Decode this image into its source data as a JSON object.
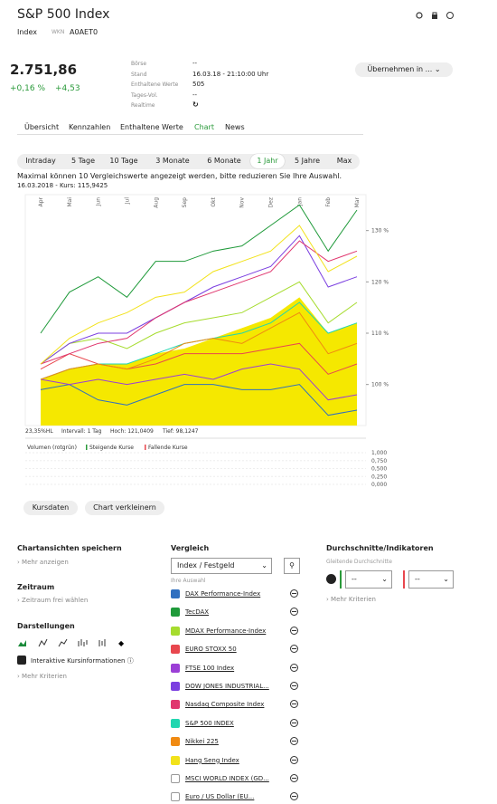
{
  "header": {
    "title": "S&P 500 Index",
    "type": "Index",
    "wkn_label": "WKN",
    "wkn": "A0AET0"
  },
  "quote": {
    "price": "2.751,86",
    "change_pct": "+0,16 %",
    "change_abs": "+4,53"
  },
  "details": [
    [
      "Börse",
      "--"
    ],
    [
      "Stand",
      "16.03.18 - 21:10:00 Uhr"
    ],
    [
      "Enthaltene Werte",
      "505"
    ],
    [
      "Tages-Vol.",
      "--"
    ],
    [
      "Realtime",
      null
    ]
  ],
  "adopt_button": "Übernehmen in ...",
  "tabs": {
    "items": [
      "Übersicht",
      "Kennzahlen",
      "Enthaltene Werte",
      "Chart",
      "News"
    ],
    "active": 3
  },
  "ranges": {
    "items": [
      "Intraday",
      "5 Tage",
      "10 Tage",
      "3 Monate",
      "6 Monate",
      "1 Jahr",
      "5 Jahre",
      "Max"
    ],
    "active": 5
  },
  "notice": "Maximal können 10 Vergleichswerte angezeigt werden, bitte reduzieren Sie Ihre Auswahl.",
  "chart_data": {
    "type": "line",
    "subtitle": "16.03.2018  -  Kurs: 115,9425",
    "categories": [
      "Apr",
      "Mai",
      "Jun",
      "Jul",
      "Aug",
      "Sep",
      "Okt",
      "Nov",
      "Dez",
      "Jan",
      "Feb",
      "Mar"
    ],
    "values": [
      101,
      103,
      104,
      104,
      106,
      107,
      109,
      111,
      113,
      117,
      110,
      112
    ],
    "color": "#f5e800",
    "ylim": [
      92,
      137
    ],
    "yticks": [
      {
        "value": 100,
        "label": "100 %"
      },
      {
        "value": 110,
        "label": "110 %"
      },
      {
        "value": 120,
        "label": "120 %"
      },
      {
        "value": 130,
        "label": "130 %"
      }
    ],
    "stats": [
      "23,35%HL",
      "Intervall: 1 Tag",
      "Hoch: 121,0409",
      "Tief: 98,1247"
    ],
    "volume": {
      "legend": [
        "Volumen (rotgrün)",
        "Steigende Kurse",
        "Fallende Kurse"
      ],
      "ylim": [
        0,
        1
      ],
      "yticks": [
        {
          "value": 1,
          "label": "1,000"
        },
        {
          "value": 0.75,
          "label": "0,750"
        },
        {
          "value": 0.5,
          "label": "0,500"
        },
        {
          "value": 0.25,
          "label": "0,250"
        },
        {
          "value": 0,
          "label": "0,000"
        }
      ]
    }
  },
  "chart_buttons": [
    "Kursdaten",
    "Chart verkleinern"
  ],
  "left": {
    "save_title": "Chartansichten speichern",
    "save_more": "Mehr anzeigen",
    "range_title": "Zeitraum",
    "range_free": "Zeitraum frei wählen",
    "display_title": "Darstellungen",
    "interactive": "Interaktive Kursinformationen",
    "more": "Mehr Kriterien"
  },
  "vergleich": {
    "title": "Vergleich",
    "select": "Index / Festgeld",
    "selection_label": "Ihre Auswahl",
    "items": [
      {
        "name": "DAX Performance-Index",
        "color": "#2f6fc0",
        "checked": true,
        "values": [
          99,
          100,
          97,
          96,
          98,
          100,
          100,
          99,
          99,
          100,
          94,
          95
        ]
      },
      {
        "name": "TecDAX",
        "color": "#1f9a3a",
        "checked": true,
        "values": [
          110,
          118,
          121,
          117,
          124,
          124,
          126,
          127,
          131,
          135,
          126,
          134
        ]
      },
      {
        "name": "MDAX Performance-Index",
        "color": "#a6dc2e",
        "checked": true,
        "values": [
          104,
          108,
          109,
          107,
          110,
          112,
          113,
          114,
          117,
          120,
          112,
          116
        ]
      },
      {
        "name": "EURO STOXX 50",
        "color": "#e8474e",
        "checked": true,
        "values": [
          103,
          106,
          104,
          103,
          104,
          106,
          106,
          106,
          107,
          108,
          102,
          104
        ]
      },
      {
        "name": "FTSE 100 Index",
        "color": "#9b3fd6",
        "checked": true,
        "values": [
          101,
          100,
          101,
          100,
          101,
          102,
          101,
          103,
          104,
          103,
          97,
          98
        ]
      },
      {
        "name": "DOW JONES INDUSTRIAL...",
        "color": "#7b3fe0",
        "checked": true,
        "values": [
          104,
          108,
          110,
          110,
          113,
          116,
          119,
          121,
          123,
          129,
          119,
          121
        ]
      },
      {
        "name": "Nasdaq Composite Index",
        "color": "#e0366e",
        "checked": true,
        "values": [
          104,
          106,
          108,
          109,
          113,
          116,
          118,
          120,
          122,
          128,
          124,
          126
        ]
      },
      {
        "name": "S&P 500 INDEX",
        "color": "#22d6b0",
        "checked": true,
        "values": [
          101,
          103,
          104,
          104,
          106,
          108,
          109,
          110,
          112,
          116,
          110,
          112
        ]
      },
      {
        "name": "Nikkei 225",
        "color": "#f08a12",
        "checked": true,
        "values": [
          101,
          103,
          104,
          103,
          105,
          108,
          109,
          108,
          111,
          114,
          106,
          108
        ]
      },
      {
        "name": "Hang Seng Index",
        "color": "#f2e21a",
        "checked": true,
        "values": [
          104,
          109,
          112,
          114,
          117,
          118,
          122,
          124,
          126,
          131,
          122,
          125
        ]
      },
      {
        "name": "MSCI WORLD INDEX (GD...",
        "checked": false
      },
      {
        "name": "Euro / US Dollar (EU...",
        "checked": false
      }
    ]
  },
  "indicators": {
    "title": "Durchschnitte/Indikatoren",
    "subtitle": "Gleitende Durchschnitte",
    "selects": [
      "--",
      "--"
    ],
    "more": "Mehr Kriterien"
  }
}
